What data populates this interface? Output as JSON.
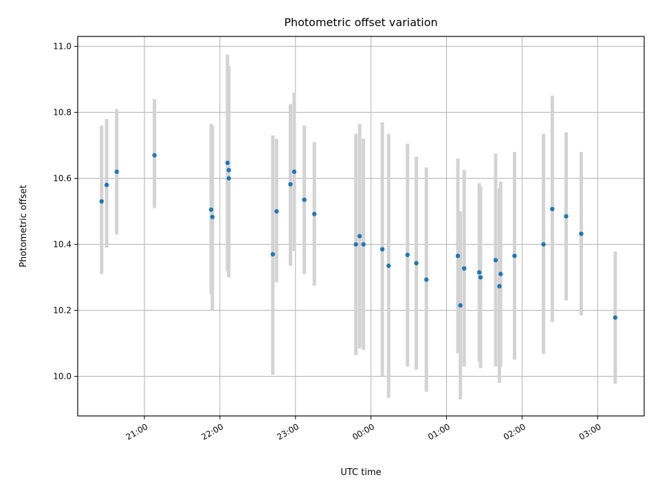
{
  "chart_data": {
    "type": "scatter",
    "title": "Photometric offset variation",
    "xlabel": "UTC time",
    "ylabel": "Photometric offset",
    "ylim": [
      9.88,
      11.03
    ],
    "xlim": [
      "20:07",
      "03:37"
    ],
    "grid": true,
    "colors": {
      "points": "#1f77b4",
      "error_bars": "#d3d3d3"
    },
    "x_ticks": [
      "21:00",
      "22:00",
      "23:00",
      "00:00",
      "01:00",
      "02:00",
      "03:00"
    ],
    "y_ticks": [
      "10.0",
      "10.2",
      "10.4",
      "10.6",
      "10.8",
      "11.0"
    ],
    "points": [
      {
        "x": "20:26",
        "y": 10.53,
        "low": 10.31,
        "high": 10.76
      },
      {
        "x": "20:30",
        "y": 10.58,
        "low": 10.39,
        "high": 10.78
      },
      {
        "x": "20:38",
        "y": 10.62,
        "low": 10.43,
        "high": 10.81
      },
      {
        "x": "21:08",
        "y": 10.67,
        "low": 10.51,
        "high": 10.84
      },
      {
        "x": "21:53",
        "y": 10.505,
        "low": 10.25,
        "high": 10.765
      },
      {
        "x": "21:54",
        "y": 10.483,
        "low": 10.2,
        "high": 10.76
      },
      {
        "x": "22:06",
        "y": 10.647,
        "low": 10.32,
        "high": 10.975
      },
      {
        "x": "22:07",
        "y": 10.6,
        "low": 10.3,
        "high": 10.94
      },
      {
        "x": "22:07",
        "y": 10.625,
        "low": 10.32,
        "high": 10.94
      },
      {
        "x": "22:42",
        "y": 10.37,
        "low": 10.005,
        "high": 10.73
      },
      {
        "x": "22:45",
        "y": 10.5,
        "low": 10.285,
        "high": 10.72
      },
      {
        "x": "22:56",
        "y": 10.582,
        "low": 10.335,
        "high": 10.825
      },
      {
        "x": "22:59",
        "y": 10.62,
        "low": 10.38,
        "high": 10.86
      },
      {
        "x": "23:07",
        "y": 10.535,
        "low": 10.31,
        "high": 10.76
      },
      {
        "x": "23:15",
        "y": 10.492,
        "low": 10.275,
        "high": 10.71
      },
      {
        "x": "23:48",
        "y": 10.4,
        "low": 10.065,
        "high": 10.735
      },
      {
        "x": "23:51",
        "y": 10.425,
        "low": 10.085,
        "high": 10.765
      },
      {
        "x": "23:54",
        "y": 10.4,
        "low": 10.08,
        "high": 10.72
      },
      {
        "x": "00:09",
        "y": 10.385,
        "low": 10.0,
        "high": 10.77
      },
      {
        "x": "00:14",
        "y": 10.335,
        "low": 9.935,
        "high": 10.735
      },
      {
        "x": "00:29",
        "y": 10.368,
        "low": 10.03,
        "high": 10.705
      },
      {
        "x": "00:36",
        "y": 10.343,
        "low": 10.02,
        "high": 10.665
      },
      {
        "x": "00:44",
        "y": 10.293,
        "low": 9.953,
        "high": 10.633
      },
      {
        "x": "01:09",
        "y": 10.365,
        "low": 10.07,
        "high": 10.66
      },
      {
        "x": "01:11",
        "y": 10.215,
        "low": 9.93,
        "high": 10.5
      },
      {
        "x": "01:14",
        "y": 10.327,
        "low": 10.03,
        "high": 10.625
      },
      {
        "x": "01:26",
        "y": 10.315,
        "low": 10.045,
        "high": 10.585
      },
      {
        "x": "01:27",
        "y": 10.3,
        "low": 10.025,
        "high": 10.575
      },
      {
        "x": "01:39",
        "y": 10.352,
        "low": 10.03,
        "high": 10.675
      },
      {
        "x": "01:42",
        "y": 10.273,
        "low": 9.98,
        "high": 10.57
      },
      {
        "x": "01:43",
        "y": 10.31,
        "low": 10.03,
        "high": 10.59
      },
      {
        "x": "01:54",
        "y": 10.365,
        "low": 10.05,
        "high": 10.68
      },
      {
        "x": "02:17",
        "y": 10.4,
        "low": 10.068,
        "high": 10.735
      },
      {
        "x": "02:24",
        "y": 10.507,
        "low": 10.165,
        "high": 10.85
      },
      {
        "x": "02:35",
        "y": 10.485,
        "low": 10.23,
        "high": 10.74
      },
      {
        "x": "02:47",
        "y": 10.432,
        "low": 10.185,
        "high": 10.68
      },
      {
        "x": "03:14",
        "y": 10.178,
        "low": 9.978,
        "high": 10.378
      }
    ]
  }
}
